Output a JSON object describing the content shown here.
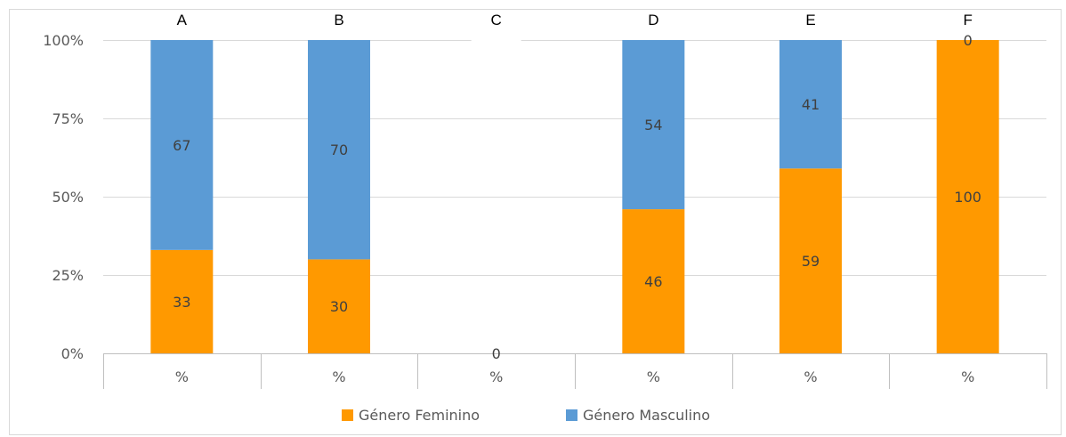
{
  "chart_data": {
    "type": "bar",
    "stacked": true,
    "percent": true,
    "group_labels": [
      "A",
      "B",
      "C",
      "D",
      "E",
      "F"
    ],
    "categories": [
      "%",
      "%",
      "%",
      "%",
      "%",
      "%"
    ],
    "series": [
      {
        "name": "Género Feminino",
        "color": "#ff9900",
        "values": [
          33,
          30,
          0,
          46,
          59,
          100
        ]
      },
      {
        "name": "Género Masculino",
        "color": "#5b9bd5",
        "values": [
          67,
          70,
          0,
          54,
          41,
          0
        ]
      }
    ],
    "yticks": [
      "0%",
      "25%",
      "50%",
      "75%",
      "100%"
    ],
    "ylim": [
      0,
      100
    ],
    "grid": true,
    "legend": "bottom"
  }
}
